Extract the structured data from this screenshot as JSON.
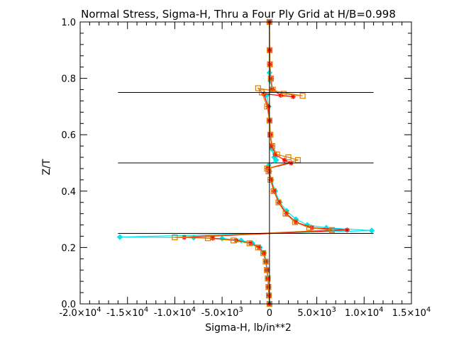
{
  "chart_data": {
    "type": "line",
    "title": "Normal Stress, Sigma-H, Thru a Four Ply Grid at H/B=0.998",
    "xlabel": "Sigma-H,  lb/in**2",
    "ylabel": "Z/T",
    "xlim": [
      -20000,
      15000
    ],
    "ylim": [
      0.0,
      1.0
    ],
    "x_ticks": [
      {
        "value": -20000,
        "mant": "-2.0×10",
        "exp": "4"
      },
      {
        "value": -15000,
        "mant": "-1.5×10",
        "exp": "4"
      },
      {
        "value": -10000,
        "mant": "-1.0×10",
        "exp": "4"
      },
      {
        "value": -5000,
        "mant": "-5.0×10",
        "exp": "3"
      },
      {
        "value": 0,
        "mant": "0",
        "exp": ""
      },
      {
        "value": 5000,
        "mant": "5.0×10",
        "exp": "3"
      },
      {
        "value": 10000,
        "mant": "1.0×10",
        "exp": "4"
      },
      {
        "value": 15000,
        "mant": "1.5×10",
        "exp": "4"
      }
    ],
    "y_ticks": [
      "0.0",
      "0.2",
      "0.4",
      "0.6",
      "0.8",
      "1.0"
    ],
    "ply_boundaries": [
      {
        "z": 0.25,
        "x_from": -16000,
        "x_to": 11000
      },
      {
        "z": 0.5,
        "x_from": -16000,
        "x_to": 11000
      },
      {
        "z": 0.75,
        "x_from": -16000,
        "x_to": 11000
      }
    ],
    "zero_line": {
      "x": 0,
      "z_from": 0.0,
      "z_to": 1.0
    },
    "series": [
      {
        "color": "#00e5ee",
        "marker": "diamond",
        "points": [
          [
            0,
            0.0
          ],
          [
            -40,
            0.03
          ],
          [
            -90,
            0.06
          ],
          [
            -150,
            0.09
          ],
          [
            -230,
            0.12
          ],
          [
            -340,
            0.15
          ],
          [
            -550,
            0.18
          ],
          [
            -1000,
            0.2
          ],
          [
            -1800,
            0.215
          ],
          [
            -3000,
            0.225
          ],
          [
            -5000,
            0.232
          ],
          [
            -8000,
            0.235
          ],
          [
            -15800,
            0.237
          ],
          [
            10800,
            0.26
          ],
          [
            6000,
            0.27
          ],
          [
            4000,
            0.28
          ],
          [
            2800,
            0.3
          ],
          [
            1800,
            0.33
          ],
          [
            1100,
            0.36
          ],
          [
            600,
            0.4
          ],
          [
            200,
            0.44
          ],
          [
            0,
            0.47
          ],
          [
            -100,
            0.49
          ],
          [
            700,
            0.51
          ],
          [
            500,
            0.52
          ],
          [
            250,
            0.55
          ],
          [
            100,
            0.6
          ],
          [
            30,
            0.65
          ],
          [
            -80,
            0.7
          ],
          [
            -300,
            0.74
          ],
          [
            300,
            0.76
          ],
          [
            100,
            0.79
          ],
          [
            0,
            0.82
          ],
          [
            0,
            0.9
          ],
          [
            0,
            1.0
          ]
        ]
      },
      {
        "color": "#ff0000",
        "marker": "asterisk",
        "points": [
          [
            0,
            0.0
          ],
          [
            -50,
            0.03
          ],
          [
            -100,
            0.06
          ],
          [
            -170,
            0.09
          ],
          [
            -260,
            0.12
          ],
          [
            -380,
            0.15
          ],
          [
            -620,
            0.18
          ],
          [
            -1100,
            0.2
          ],
          [
            -2000,
            0.215
          ],
          [
            -3500,
            0.225
          ],
          [
            -6000,
            0.233
          ],
          [
            -9000,
            0.236
          ],
          [
            8200,
            0.262
          ],
          [
            4500,
            0.27
          ],
          [
            2800,
            0.29
          ],
          [
            1800,
            0.32
          ],
          [
            1000,
            0.36
          ],
          [
            500,
            0.4
          ],
          [
            150,
            0.44
          ],
          [
            -50,
            0.47
          ],
          [
            -200,
            0.48
          ],
          [
            2300,
            0.5
          ],
          [
            1600,
            0.51
          ],
          [
            600,
            0.53
          ],
          [
            250,
            0.56
          ],
          [
            80,
            0.6
          ],
          [
            0,
            0.65
          ],
          [
            -150,
            0.7
          ],
          [
            -600,
            0.745
          ],
          [
            2500,
            0.735
          ],
          [
            1200,
            0.74
          ],
          [
            300,
            0.76
          ],
          [
            150,
            0.8
          ],
          [
            50,
            0.85
          ],
          [
            20,
            0.9
          ],
          [
            0,
            1.0
          ]
        ]
      },
      {
        "color": "#e07a00",
        "marker": "square",
        "points": [
          [
            0,
            0.0
          ],
          [
            -60,
            0.03
          ],
          [
            -110,
            0.06
          ],
          [
            -180,
            0.09
          ],
          [
            -280,
            0.12
          ],
          [
            -400,
            0.15
          ],
          [
            -650,
            0.18
          ],
          [
            -1200,
            0.2
          ],
          [
            -2100,
            0.215
          ],
          [
            -3800,
            0.225
          ],
          [
            -6500,
            0.233
          ],
          [
            -10000,
            0.236
          ],
          [
            6600,
            0.262
          ],
          [
            4200,
            0.27
          ],
          [
            2700,
            0.29
          ],
          [
            1700,
            0.32
          ],
          [
            950,
            0.36
          ],
          [
            450,
            0.4
          ],
          [
            100,
            0.44
          ],
          [
            -100,
            0.47
          ],
          [
            -250,
            0.48
          ],
          [
            3000,
            0.51
          ],
          [
            2000,
            0.52
          ],
          [
            800,
            0.53
          ],
          [
            300,
            0.56
          ],
          [
            100,
            0.6
          ],
          [
            0,
            0.65
          ],
          [
            -250,
            0.7
          ],
          [
            -800,
            0.75
          ],
          [
            -1200,
            0.765
          ],
          [
            3500,
            0.738
          ],
          [
            1500,
            0.745
          ],
          [
            350,
            0.76
          ],
          [
            150,
            0.8
          ],
          [
            50,
            0.85
          ],
          [
            20,
            0.9
          ],
          [
            0,
            1.0
          ]
        ]
      }
    ]
  }
}
